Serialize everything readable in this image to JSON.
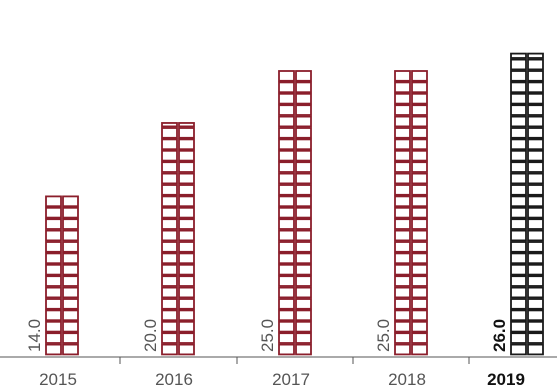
{
  "chart_data": {
    "type": "bar",
    "categories": [
      "2015",
      "2016",
      "2017",
      "2018",
      "2019"
    ],
    "values": [
      14.0,
      20.0,
      25.0,
      25.0,
      26.0
    ],
    "value_labels": [
      "14.0",
      "20.0",
      "25.0",
      "25.0",
      "26.0"
    ],
    "highlight_index": 4,
    "title": "",
    "xlabel": "",
    "ylabel": "",
    "grid": false,
    "legend": "none",
    "marker_style": "stacked square cells, two per row",
    "colors": {
      "series": "#8b1e2b",
      "highlight": "#1a1a1a",
      "axis": "#555555"
    }
  }
}
